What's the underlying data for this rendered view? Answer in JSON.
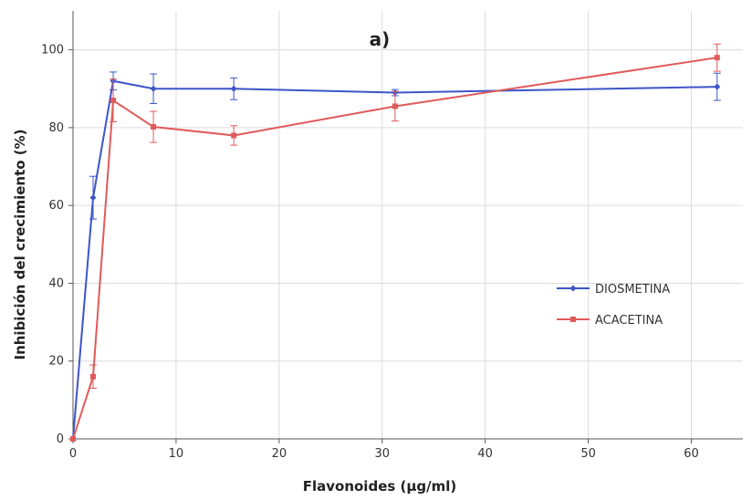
{
  "chart_data": {
    "type": "line",
    "panel_label": "a)",
    "xlabel": "Flavonoides (µg/ml)",
    "ylabel": "Inhibición del crecimiento (%)",
    "xlim": [
      0,
      65
    ],
    "ylim": [
      0,
      110
    ],
    "x_ticks": [
      0,
      10,
      20,
      30,
      40,
      50,
      60
    ],
    "y_ticks": [
      0,
      20,
      40,
      60,
      80,
      100
    ],
    "grid": true,
    "legend_position": "right",
    "series": [
      {
        "name": "DIOSMETINA",
        "color": "#3d55c8",
        "marker": "diamond",
        "x": [
          0,
          1.95,
          3.9,
          7.8,
          15.6,
          31.25,
          62.5
        ],
        "y": [
          0,
          62,
          92,
          90,
          90,
          89,
          90.5
        ],
        "err": [
          0,
          5.5,
          2.3,
          3.8,
          2.8,
          0.8,
          3.5
        ]
      },
      {
        "name": "ACACETINA",
        "color": "#e05a5a",
        "marker": "square",
        "x": [
          0,
          1.95,
          3.9,
          7.8,
          15.6,
          31.25,
          62.5
        ],
        "y": [
          0,
          16,
          87,
          80.2,
          78,
          85.5,
          98
        ],
        "err": [
          0,
          3,
          5.5,
          4,
          2.5,
          3.8,
          3.5
        ]
      }
    ]
  }
}
